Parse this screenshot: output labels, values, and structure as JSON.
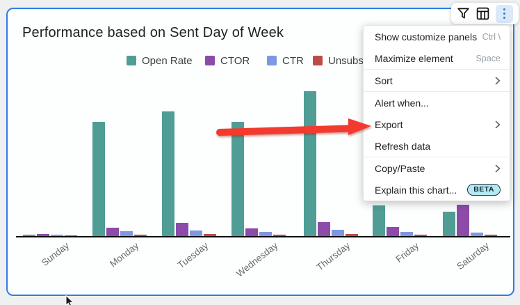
{
  "panel": {
    "title": "Performance based on Sent Day of Week"
  },
  "toolbar": {
    "icons": [
      {
        "name": "filter-icon"
      },
      {
        "name": "table-icon"
      },
      {
        "name": "more-options-icon"
      }
    ]
  },
  "legend": [
    {
      "label": "Open Rate",
      "color": "#4f9d94"
    },
    {
      "label": "CTOR",
      "color": "#8c4ba8"
    },
    {
      "label": "CTR",
      "color": "#7d97e3"
    },
    {
      "label": "Unsubscribe",
      "color": "#bf4b45"
    }
  ],
  "chart_data": {
    "type": "bar",
    "title": "Performance based on Sent Day of Week",
    "categories": [
      "Sunday",
      "Monday",
      "Tuesday",
      "Wednesday",
      "Thursday",
      "Friday",
      "Saturday"
    ],
    "series": [
      {
        "name": "Open Rate",
        "color": "#4f9d94",
        "values": [
          2,
          164,
          179,
          164,
          208,
          44,
          35
        ]
      },
      {
        "name": "CTOR",
        "color": "#8c4ba8",
        "values": [
          3,
          12,
          19,
          11,
          20,
          13,
          45
        ]
      },
      {
        "name": "CTR",
        "color": "#7d97e3",
        "values": [
          2,
          7,
          8,
          6,
          9,
          6,
          5
        ]
      },
      {
        "name": "Unsubscribe",
        "color": "#bf4b45",
        "values": [
          1,
          2,
          3,
          2,
          3,
          2,
          2
        ]
      }
    ],
    "value_unit": "relative bar height (no y-axis shown in chart)",
    "xlabel": "",
    "ylabel": "",
    "y_axis_visible": false,
    "grid": false,
    "legend_position": "top"
  },
  "context_menu": {
    "items": [
      {
        "id": "show-customize-panels",
        "label": "Show customize panels",
        "shortcut": "Ctrl \\"
      },
      {
        "id": "maximize-element",
        "label": "Maximize element",
        "shortcut": "Space"
      },
      {
        "divider": true
      },
      {
        "id": "sort",
        "label": "Sort",
        "submenu": true
      },
      {
        "divider": true
      },
      {
        "id": "alert-when",
        "label": "Alert when..."
      },
      {
        "id": "export",
        "label": "Export",
        "submenu": true
      },
      {
        "id": "refresh-data",
        "label": "Refresh data"
      },
      {
        "divider": true
      },
      {
        "id": "copy-paste",
        "label": "Copy/Paste",
        "submenu": true
      },
      {
        "id": "explain-this-chart",
        "label": "Explain this chart...",
        "badge": "BETA"
      }
    ]
  },
  "annotation": {
    "arrow_color": "#f23b2e",
    "points_to": "Export"
  }
}
